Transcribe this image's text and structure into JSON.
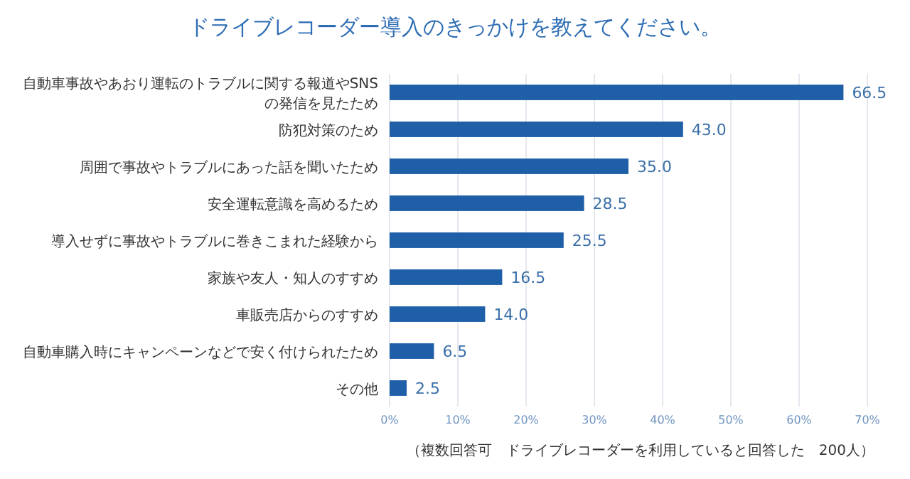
{
  "chart_data": {
    "type": "bar",
    "orientation": "horizontal",
    "title": "ドライブレコーダー導入のきっかけを教えてください。",
    "categories": [
      "自動車事故やあおり運転のトラブルに関する報道やSNSの発信を見たため",
      "防犯対策のため",
      "周囲で事故やトラブルにあった話を聞いたため",
      "安全運転意識を高めるため",
      "導入せずに事故やトラブルに巻きこまれた経験から",
      "家族や友人・知人のすすめ",
      "車販売店からのすすめ",
      "自動車購入時にキャンペーンなどで安く付けられたため",
      "その他"
    ],
    "values": [
      66.5,
      43.0,
      35.0,
      28.5,
      25.5,
      16.5,
      14.0,
      6.5,
      2.5
    ],
    "value_labels": [
      "66.5",
      "43.0",
      "35.0",
      "28.5",
      "25.5",
      "16.5",
      "14.0",
      "6.5",
      "2.5"
    ],
    "color": "#1f5fa8",
    "xlim": [
      0,
      70
    ],
    "xticks": [
      {
        "value": 0,
        "label": "0%"
      },
      {
        "value": 10,
        "label": "10%"
      },
      {
        "value": 20,
        "label": "20%"
      },
      {
        "value": 30,
        "label": "30%"
      },
      {
        "value": 40,
        "label": "40%"
      },
      {
        "value": 50,
        "label": "50%"
      },
      {
        "value": 60,
        "label": "60%"
      },
      {
        "value": 70,
        "label": "70%"
      }
    ],
    "grid": "x",
    "annotations": [
      "（複数回答可　ドライブレコーダーを利用していると回答した　200人）"
    ]
  }
}
